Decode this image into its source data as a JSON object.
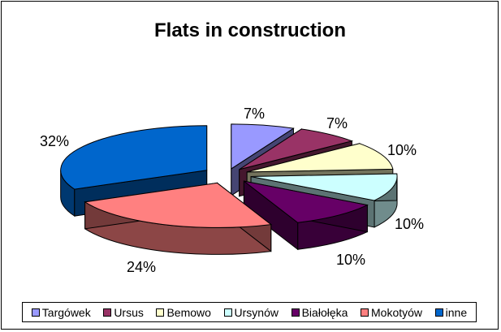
{
  "chart_data": {
    "type": "pie",
    "title": "Flats in construction",
    "style": "3d-exploded",
    "categories": [
      "Targówek",
      "Ursus",
      "Bemowo",
      "Ursynów",
      "Białołęka",
      "Mokotyów",
      "inne"
    ],
    "values": [
      7,
      7,
      10,
      10,
      10,
      24,
      32
    ],
    "labels": [
      "7%",
      "7%",
      "10%",
      "10%",
      "10%",
      "24%",
      "32%"
    ],
    "colors": [
      "#9999FF",
      "#993366",
      "#FFFFCC",
      "#CCFFFF",
      "#660066",
      "#FF8080",
      "#0066CC"
    ],
    "legend_position": "bottom"
  }
}
